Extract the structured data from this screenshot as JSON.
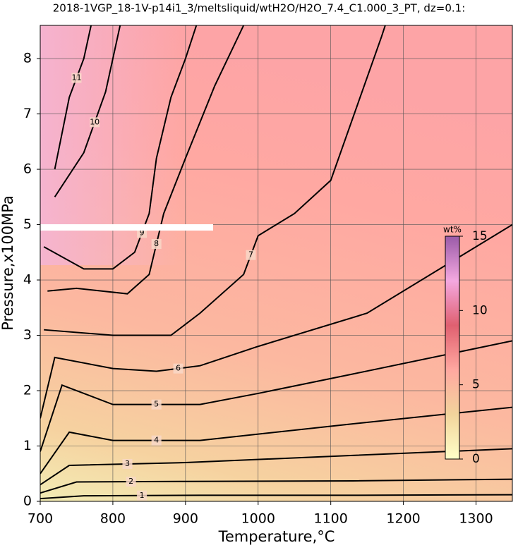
{
  "chart_data": {
    "type": "contour",
    "title": "2018-1VGP_18-1V-p14i1_3/meltsliquid/wtH2O/H2O_7.4_C1.000_3_PT, dz=0.1:",
    "x_label": "Temperature,°C",
    "y_label": "Pressure,x100MPa",
    "xlim": [
      700,
      1350
    ],
    "ylim": [
      0,
      8.6
    ],
    "xticks": [
      700,
      800,
      900,
      1000,
      1100,
      1200,
      1300
    ],
    "yticks": [
      0,
      1,
      2,
      3,
      4,
      5,
      6,
      7,
      8
    ],
    "grid": true,
    "line_color": "#000000",
    "contours": [
      {
        "level": 1,
        "T": [
          700,
          760,
          920,
          1130,
          1350
        ],
        "P": [
          0.05,
          0.1,
          0.11,
          0.11,
          0.12
        ]
      },
      {
        "level": 2,
        "T": [
          700,
          750,
          900,
          1130,
          1350
        ],
        "P": [
          0.15,
          0.35,
          0.36,
          0.37,
          0.4
        ]
      },
      {
        "level": 3,
        "T": [
          700,
          740,
          900,
          1130,
          1350
        ],
        "P": [
          0.3,
          0.65,
          0.7,
          0.83,
          0.95
        ]
      },
      {
        "level": 4,
        "T": [
          700,
          740,
          800,
          920,
          1130,
          1350
        ],
        "P": [
          0.5,
          1.25,
          1.1,
          1.1,
          1.4,
          1.7
        ]
      },
      {
        "level": 5,
        "T": [
          700,
          730,
          800,
          920,
          1000,
          1130,
          1350
        ],
        "P": [
          0.9,
          2.1,
          1.75,
          1.75,
          1.95,
          2.3,
          2.9
        ]
      },
      {
        "level": 6,
        "T": [
          700,
          720,
          800,
          860,
          920,
          1000,
          1150,
          1350
        ],
        "P": [
          1.5,
          2.6,
          2.4,
          2.35,
          2.45,
          2.8,
          3.4,
          5.0
        ]
      },
      {
        "level": 7,
        "T": [
          705,
          800,
          880,
          920,
          980,
          1000,
          1050,
          1100,
          1170,
          1175
        ],
        "P": [
          3.1,
          3.0,
          3.0,
          3.4,
          4.1,
          4.8,
          5.2,
          5.8,
          8.4,
          8.6
        ]
      },
      {
        "level": 8,
        "T": [
          710,
          750,
          820,
          850,
          870,
          900,
          940,
          980
        ],
        "P": [
          3.8,
          3.85,
          3.75,
          4.1,
          5.2,
          6.2,
          7.5,
          8.6
        ]
      },
      {
        "level": 9,
        "T": [
          705,
          760,
          800,
          830,
          850,
          860,
          880,
          900,
          915
        ],
        "P": [
          4.6,
          4.2,
          4.2,
          4.5,
          5.2,
          6.2,
          7.3,
          8.0,
          8.6
        ]
      },
      {
        "level": 10,
        "T": [
          720,
          760,
          790,
          810
        ],
        "P": [
          5.5,
          6.3,
          7.4,
          8.6
        ]
      },
      {
        "level": 11,
        "T": [
          720,
          740,
          760,
          770
        ],
        "P": [
          6.0,
          7.3,
          8.0,
          8.6
        ]
      }
    ],
    "colorbar": {
      "label": "wt%",
      "lim": [
        0,
        15
      ],
      "ticks": [
        0,
        5,
        10,
        15
      ],
      "colors": [
        "#ffffc8",
        "#f2d49c",
        "#ffa8a0",
        "#e06070",
        "#f4a8e0",
        "#9a5aa8"
      ]
    }
  }
}
